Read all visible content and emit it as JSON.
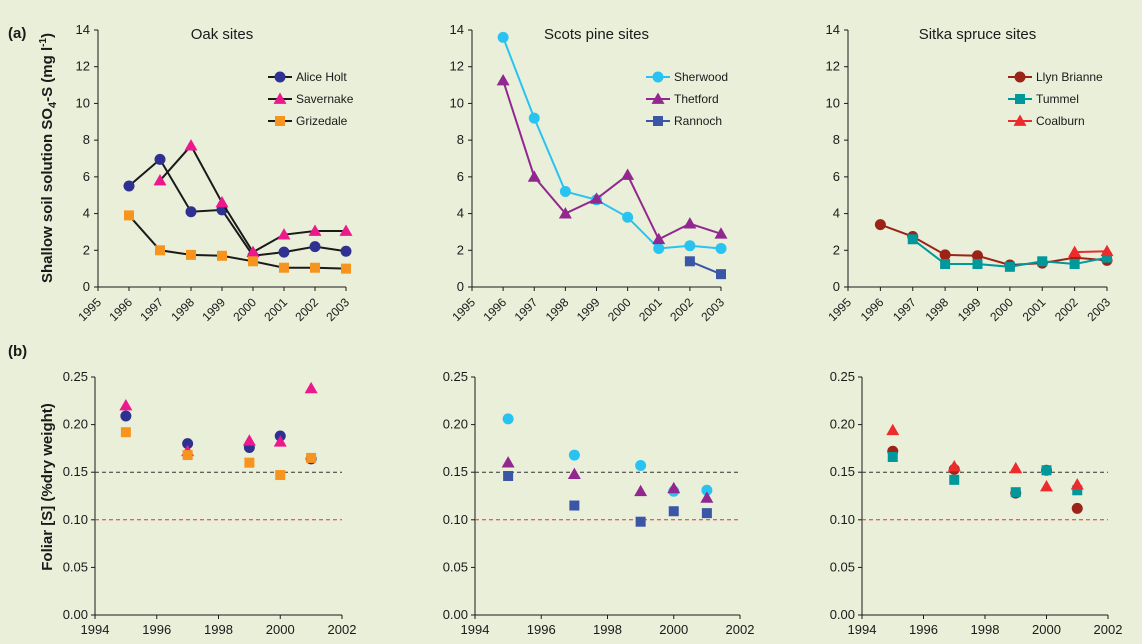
{
  "panel_labels": {
    "a": "(a)",
    "b": "(b)"
  },
  "ylabel_a": {
    "main": "Shallow soil solution SO",
    "sub": "4",
    "tail": "-S  (mg l",
    "sup": "-1",
    "end": ")"
  },
  "ylabel_b": "Foliar [S] (%dry weight)",
  "colors": {
    "background": "#e9efd9",
    "axis": "#1a1a1a",
    "ref_015": "#333333",
    "ref_010": "#e8342a",
    "alice_holt": "#2e3192",
    "savernake": "#ec198c",
    "grizedale": "#f7941d",
    "sherwood": "#29c3f2",
    "thetford": "#92278f",
    "rannoch": "#3c56a7",
    "llyn_brianne": "#9b2318",
    "tummel": "#00989a",
    "coalburn": "#ee2b2c"
  },
  "chart_data": [
    {
      "type": "line",
      "title": "Oak sites",
      "x_ticks": [
        "1995",
        "1996",
        "1997",
        "1998",
        "1999",
        "2000",
        "2001",
        "2002",
        "2003"
      ],
      "ylim": [
        0,
        14
      ],
      "y_ticks": [
        "0",
        "2",
        "4",
        "6",
        "8",
        "10",
        "12",
        "14"
      ],
      "legend_position": "top-right",
      "series": [
        {
          "name": "Alice Holt",
          "marker": "circle",
          "color": "#2e3192",
          "line_color": "#1a1a1a",
          "x": [
            1996,
            1997,
            1998,
            1999,
            2000,
            2001,
            2002,
            2003
          ],
          "values": [
            5.5,
            6.95,
            4.1,
            4.2,
            1.7,
            1.9,
            2.2,
            1.95
          ]
        },
        {
          "name": "Savernake",
          "marker": "triangle",
          "color": "#ec198c",
          "line_color": "#1a1a1a",
          "x": [
            1997,
            1998,
            1999,
            2000,
            2001,
            2002,
            2003
          ],
          "values": [
            5.8,
            7.7,
            4.6,
            1.9,
            2.85,
            3.05,
            3.05
          ]
        },
        {
          "name": "Grizedale",
          "marker": "square",
          "color": "#f7941d",
          "line_color": "#1a1a1a",
          "x": [
            1996,
            1997,
            1998,
            1999,
            2000,
            2001,
            2002,
            2003
          ],
          "values": [
            3.9,
            2.0,
            1.75,
            1.7,
            1.4,
            1.05,
            1.05,
            1.0
          ]
        }
      ]
    },
    {
      "type": "line",
      "title": "Scots pine sites",
      "x_ticks": [
        "1995",
        "1996",
        "1997",
        "1998",
        "1999",
        "2000",
        "2001",
        "2002",
        "2003"
      ],
      "ylim": [
        0,
        14
      ],
      "y_ticks": [
        "0",
        "2",
        "4",
        "6",
        "8",
        "10",
        "12",
        "14"
      ],
      "legend_position": "top-right",
      "series": [
        {
          "name": "Sherwood",
          "marker": "circle",
          "color": "#29c3f2",
          "line_color": "#29c3f2",
          "x": [
            1996,
            1997,
            1998,
            1999,
            2000,
            2001,
            2002,
            2003
          ],
          "values": [
            13.6,
            9.2,
            5.2,
            4.75,
            3.8,
            2.1,
            2.25,
            2.1
          ]
        },
        {
          "name": "Thetford",
          "marker": "triangle",
          "color": "#92278f",
          "line_color": "#92278f",
          "x": [
            1996,
            1997,
            1998,
            1999,
            2000,
            2001,
            2002,
            2003
          ],
          "values": [
            11.25,
            6.0,
            4.0,
            4.8,
            6.1,
            2.6,
            3.45,
            2.9
          ]
        },
        {
          "name": "Rannoch",
          "marker": "square",
          "color": "#3c56a7",
          "line_color": "#3c56a7",
          "x": [
            2002,
            2003
          ],
          "values": [
            1.4,
            0.7
          ]
        }
      ]
    },
    {
      "type": "line",
      "title": "Sitka spruce sites",
      "x_ticks": [
        "1995",
        "1996",
        "1997",
        "1998",
        "1999",
        "2000",
        "2001",
        "2002",
        "2003"
      ],
      "ylim": [
        0,
        14
      ],
      "y_ticks": [
        "0",
        "2",
        "4",
        "6",
        "8",
        "10",
        "12",
        "14"
      ],
      "legend_position": "top-right",
      "series": [
        {
          "name": "Llyn Brianne",
          "marker": "circle",
          "color": "#9b2318",
          "line_color": "#9b2318",
          "x": [
            1996,
            1997,
            1998,
            1999,
            2000,
            2001,
            2002,
            2003
          ],
          "values": [
            3.4,
            2.75,
            1.75,
            1.7,
            1.2,
            1.3,
            1.6,
            1.45
          ]
        },
        {
          "name": "Tummel",
          "marker": "square",
          "color": "#00989a",
          "line_color": "#00989a",
          "x": [
            1997,
            1998,
            1999,
            2000,
            2001,
            2002,
            2003
          ],
          "values": [
            2.6,
            1.25,
            1.25,
            1.1,
            1.4,
            1.25,
            1.6
          ]
        },
        {
          "name": "Coalburn",
          "marker": "triangle",
          "color": "#ee2b2c",
          "line_color": "#ee2b2c",
          "x": [
            2002,
            2003
          ],
          "values": [
            1.9,
            1.95
          ]
        }
      ]
    },
    {
      "type": "scatter",
      "xlim": [
        1994,
        2002
      ],
      "x_ticks": [
        "1994",
        "1996",
        "1998",
        "2000",
        "2002"
      ],
      "ylim": [
        0,
        0.25
      ],
      "y_ticks": [
        "0.00",
        "0.05",
        "0.10",
        "0.15",
        "0.20",
        "0.25"
      ],
      "reference_lines": [
        0.15,
        0.1
      ],
      "series": [
        {
          "name": "Alice Holt",
          "marker": "circle",
          "color": "#2e3192",
          "x": [
            1995,
            1997,
            1999,
            2000,
            2001
          ],
          "values": [
            0.209,
            0.18,
            0.176,
            0.188,
            0.164
          ]
        },
        {
          "name": "Savernake",
          "marker": "triangle",
          "color": "#ec198c",
          "x": [
            1995,
            1997,
            1999,
            2000,
            2001
          ],
          "values": [
            0.22,
            0.172,
            0.183,
            0.182,
            0.238
          ]
        },
        {
          "name": "Grizedale",
          "marker": "square",
          "color": "#f7941d",
          "x": [
            1995,
            1997,
            1999,
            2000,
            2001
          ],
          "values": [
            0.192,
            0.168,
            0.16,
            0.147,
            0.165
          ]
        }
      ]
    },
    {
      "type": "scatter",
      "xlim": [
        1994,
        2002
      ],
      "x_ticks": [
        "1994",
        "1996",
        "1998",
        "2000",
        "2002"
      ],
      "ylim": [
        0,
        0.25
      ],
      "y_ticks": [
        "0.00",
        "0.05",
        "0.10",
        "0.15",
        "0.20",
        "0.25"
      ],
      "reference_lines": [
        0.15,
        0.1
      ],
      "series": [
        {
          "name": "Sherwood",
          "marker": "circle",
          "color": "#29c3f2",
          "x": [
            1995,
            1997,
            1999,
            2000,
            2001
          ],
          "values": [
            0.206,
            0.168,
            0.157,
            0.13,
            0.131
          ]
        },
        {
          "name": "Thetford",
          "marker": "triangle",
          "color": "#92278f",
          "x": [
            1995,
            1997,
            1999,
            2000,
            2001
          ],
          "values": [
            0.16,
            0.148,
            0.13,
            0.133,
            0.123
          ]
        },
        {
          "name": "Rannoch",
          "marker": "square",
          "color": "#3c56a7",
          "x": [
            1995,
            1997,
            1999,
            2000,
            2001
          ],
          "values": [
            0.146,
            0.115,
            0.098,
            0.109,
            0.107
          ]
        }
      ]
    },
    {
      "type": "scatter",
      "xlim": [
        1994,
        2002
      ],
      "x_ticks": [
        "1994",
        "1996",
        "1998",
        "2000",
        "2002"
      ],
      "ylim": [
        0,
        0.25
      ],
      "y_ticks": [
        "0.00",
        "0.05",
        "0.10",
        "0.15",
        "0.20",
        "0.25"
      ],
      "reference_lines": [
        0.15,
        0.1
      ],
      "series": [
        {
          "name": "Llyn Brianne",
          "marker": "circle",
          "color": "#9b2318",
          "x": [
            1995,
            1997,
            1999,
            2000,
            2001
          ],
          "values": [
            0.172,
            0.153,
            0.128,
            0.152,
            0.112
          ]
        },
        {
          "name": "Tummel",
          "marker": "square",
          "color": "#00989a",
          "x": [
            1995,
            1997,
            1999,
            2000,
            2001
          ],
          "values": [
            0.166,
            0.142,
            0.129,
            0.152,
            0.131
          ]
        },
        {
          "name": "Coalburn",
          "marker": "triangle",
          "color": "#ee2b2c",
          "x": [
            1995,
            1997,
            1999,
            2000,
            2001
          ],
          "values": [
            0.194,
            0.156,
            0.154,
            0.135,
            0.137
          ]
        }
      ]
    }
  ]
}
